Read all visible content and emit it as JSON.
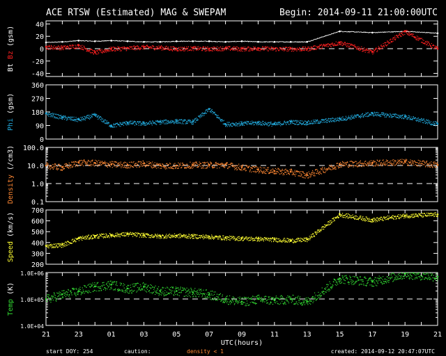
{
  "header": {
    "title": "ACE RTSW (Estimated) MAG & SWEPAM",
    "begin": "Begin: 2014-09-11 21:00:00UTC"
  },
  "footer": {
    "start_doy": "start DOY: 254",
    "caution": "caution:",
    "density_note": "density < 1",
    "created": "created: 2014-09-12 20:47:07UTC"
  },
  "colors": {
    "bt": "#ffffff",
    "bz": "#ff2020",
    "phi": "#22aadd",
    "density": "#ff8833",
    "speed": "#ffff33",
    "temp": "#33dd33",
    "axis": "#ffffff",
    "caution": "#ff8833"
  },
  "chart_data": [
    {
      "type": "scatter",
      "panel": "mag",
      "ylabel_parts": [
        {
          "text": "Bt",
          "color": "#ffffff"
        },
        {
          "text": "Bz",
          "color": "#ff2020"
        },
        {
          "text": "(gsm)",
          "color": "#ffffff"
        }
      ],
      "ylim": [
        -45,
        45
      ],
      "yticks": [
        40,
        20,
        0,
        -20,
        -40
      ],
      "yticklabels": [
        "40",
        "20",
        "0",
        "-20",
        "-40"
      ],
      "log_scale": false,
      "dashed_ref": [
        0
      ],
      "x_hours": [
        0,
        2,
        4,
        6,
        8,
        10,
        12,
        14,
        16,
        18,
        20,
        22,
        24,
        26,
        28,
        30,
        32,
        36,
        40,
        44,
        48
      ],
      "series": [
        {
          "key": "bt",
          "values": [
            10,
            11,
            13,
            12,
            13,
            12,
            11,
            11,
            12,
            12,
            12,
            11,
            12,
            11,
            11,
            11,
            11,
            28,
            26,
            28,
            25
          ]
        },
        {
          "key": "bz",
          "values": [
            3,
            2,
            5,
            -6,
            0,
            1,
            3,
            2,
            0,
            1,
            0,
            1,
            0,
            1,
            0,
            0,
            0,
            10,
            -5,
            28,
            0
          ]
        }
      ]
    },
    {
      "type": "scatter",
      "panel": "phi",
      "ylabel_parts": [
        {
          "text": "Phi",
          "color": "#22aadd"
        },
        {
          "text": "(gsm)",
          "color": "#ffffff"
        }
      ],
      "ylim": [
        0,
        360
      ],
      "yticks": [
        360,
        270,
        180,
        90,
        0
      ],
      "yticklabels": [
        "360",
        "270",
        "180",
        "90",
        "0"
      ],
      "log_scale": false,
      "dashed_ref": [],
      "x_hours": [
        0,
        2,
        4,
        6,
        8,
        10,
        12,
        14,
        16,
        18,
        20,
        22,
        24,
        26,
        28,
        30,
        32,
        36,
        40,
        44,
        48
      ],
      "series": [
        {
          "key": "phi",
          "values": [
            170,
            145,
            130,
            160,
            90,
            110,
            105,
            115,
            120,
            115,
            200,
            100,
            105,
            110,
            100,
            115,
            110,
            135,
            170,
            150,
            100
          ]
        }
      ]
    },
    {
      "type": "scatter",
      "panel": "density",
      "ylabel_parts": [
        {
          "text": "Density",
          "color": "#ff8833"
        },
        {
          "text": "(/cm3)",
          "color": "#ffffff"
        }
      ],
      "ylim": [
        0.1,
        100
      ],
      "yticks": [
        100,
        10,
        1,
        0.1
      ],
      "yticklabels": [
        "100.0",
        "10.0",
        "1.0",
        "0.1"
      ],
      "log_scale": true,
      "dashed_ref": [
        10,
        1
      ],
      "x_hours": [
        0,
        2,
        4,
        6,
        8,
        10,
        12,
        14,
        16,
        18,
        20,
        22,
        24,
        26,
        28,
        30,
        32,
        36,
        40,
        44,
        48
      ],
      "series": [
        {
          "key": "density",
          "values": [
            10,
            8,
            15,
            14,
            12,
            11,
            13,
            10,
            10,
            11,
            11,
            11,
            8,
            6,
            5,
            4.5,
            3,
            12,
            14,
            16,
            11
          ]
        }
      ]
    },
    {
      "type": "scatter",
      "panel": "speed",
      "ylabel_parts": [
        {
          "text": "Speed",
          "color": "#ffff33"
        },
        {
          "text": "(km/s)",
          "color": "#ffffff"
        }
      ],
      "ylim": [
        200,
        700
      ],
      "yticks": [
        700,
        600,
        500,
        400,
        300,
        200
      ],
      "yticklabels": [
        "700",
        "600",
        "500",
        "400",
        "300",
        "200"
      ],
      "log_scale": false,
      "dashed_ref": [],
      "x_hours": [
        0,
        2,
        4,
        6,
        8,
        10,
        12,
        14,
        16,
        18,
        20,
        22,
        24,
        26,
        28,
        30,
        32,
        36,
        40,
        44,
        48
      ],
      "series": [
        {
          "key": "speed",
          "values": [
            370,
            380,
            440,
            460,
            470,
            480,
            470,
            460,
            465,
            460,
            455,
            445,
            440,
            435,
            430,
            420,
            430,
            660,
            610,
            650,
            660
          ]
        }
      ]
    },
    {
      "type": "scatter",
      "panel": "temp",
      "ylabel_parts": [
        {
          "text": "Temp",
          "color": "#33dd33"
        },
        {
          "text": "(K)",
          "color": "#ffffff"
        }
      ],
      "ylim": [
        10000,
        1000000
      ],
      "yticks": [
        1000000,
        100000,
        10000
      ],
      "yticklabels": [
        "1.0E+06",
        "1.0E+05",
        "1.0E+04"
      ],
      "log_scale": true,
      "dashed_ref": [
        100000
      ],
      "x_hours": [
        0,
        2,
        4,
        6,
        8,
        10,
        12,
        14,
        16,
        18,
        20,
        22,
        24,
        26,
        28,
        30,
        32,
        36,
        40,
        44,
        48
      ],
      "series": [
        {
          "key": "temp",
          "values": [
            100000,
            150000,
            200000,
            300000,
            350000,
            250000,
            300000,
            200000,
            200000,
            180000,
            150000,
            100000,
            80000,
            100000,
            90000,
            100000,
            80000,
            600000,
            450000,
            900000,
            700000
          ]
        }
      ]
    }
  ],
  "x_axis": {
    "label": "UTC(hours)",
    "range_hours": [
      0,
      48
    ],
    "tick_hours": [
      0,
      2,
      4,
      6,
      8,
      10,
      12,
      14,
      16,
      18,
      20,
      22,
      24,
      26,
      28,
      30,
      32,
      34,
      36,
      38,
      40,
      42,
      44,
      46,
      48
    ],
    "tick_labels": [
      "21",
      "23",
      "01",
      "03",
      "05",
      "07",
      "09",
      "11",
      "13",
      "15",
      "17",
      "19",
      "21"
    ]
  }
}
